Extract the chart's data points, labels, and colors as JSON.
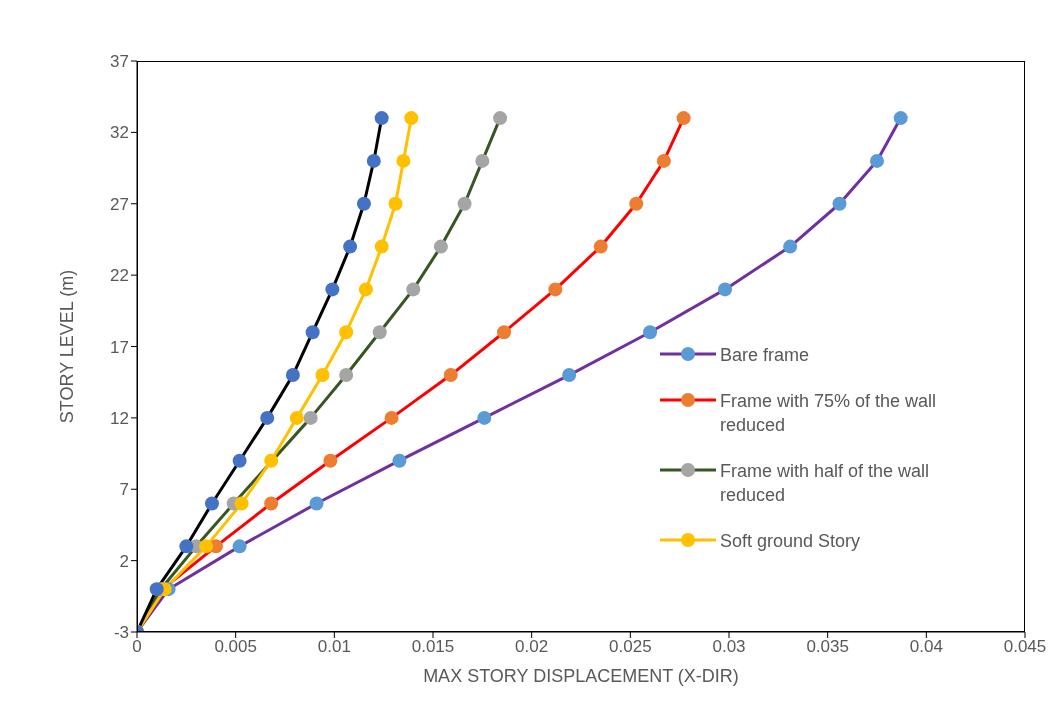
{
  "chart_data": {
    "type": "line",
    "xlabel": "MAX STORY DISPLACEMENT (X-DIR)",
    "ylabel": "STORY LEVEL (m)",
    "xlim": [
      0,
      0.045
    ],
    "xticks": [
      0,
      0.005,
      0.01,
      0.015,
      0.02,
      0.025,
      0.03,
      0.035,
      0.04,
      0.045
    ],
    "ylim": [
      -3,
      37
    ],
    "yticks": [
      -3,
      2,
      7,
      12,
      17,
      22,
      27,
      32,
      37
    ],
    "grid": false,
    "legend": "right",
    "marker": "circle",
    "line_style": "solid",
    "series": [
      {
        "name": "Bare frame",
        "color": "#7030a0",
        "colors": [
          "#5b9bd5",
          "#5b9bd5",
          "#5b9bd5",
          "#5b9bd5",
          "#5b9bd5",
          "#5b9bd5",
          "#5b9bd5",
          "#5b9bd5",
          "#5b9bd5",
          "#5b9bd5",
          "#5b9bd5",
          "#5b9bd5",
          "#5b9bd5"
        ],
        "x": [
          0,
          0.0016,
          0.0052,
          0.0091,
          0.0133,
          0.0176,
          0.0219,
          0.026,
          0.0298,
          0.0331,
          0.0356,
          0.0375,
          0.0387
        ],
        "values": [
          -3,
          0,
          3,
          6,
          9,
          12,
          15,
          18,
          21,
          24,
          27,
          30,
          33
        ]
      },
      {
        "name": "Frame with 75% of the wall reduced",
        "color": "#ff0000",
        "colors": [
          "#ed7d31",
          "#ed7d31",
          "#ed7d31",
          "#ed7d31",
          "#ed7d31",
          "#ed7d31",
          "#ed7d31",
          "#ed7d31",
          "#ed7d31",
          "#ed7d31",
          "#ed7d31",
          "#ed7d31",
          "#ed7d31"
        ],
        "x": [
          0,
          0.0013,
          0.004,
          0.0068,
          0.0098,
          0.0129,
          0.0159,
          0.0186,
          0.0212,
          0.0235,
          0.0253,
          0.0267,
          0.0277
        ],
        "values": [
          -3,
          0,
          3,
          6,
          9,
          12,
          15,
          18,
          21,
          24,
          27,
          30,
          33
        ]
      },
      {
        "name": "Frame with half of the wall reduced",
        "color": "#375623",
        "colors": [
          "#a5a5a5",
          "#a5a5a5",
          "#a5a5a5",
          "#a5a5a5",
          null,
          "#a5a5a5",
          "#a5a5a5",
          "#a5a5a5",
          "#a5a5a5",
          "#a5a5a5",
          "#a5a5a5",
          "#a5a5a5",
          "#a5a5a5"
        ],
        "x": [
          0,
          0.0012,
          0.003,
          0.0049,
          0.0068,
          0.0088,
          0.0106,
          0.0123,
          0.014,
          0.0154,
          0.0166,
          0.0175,
          0.0184
        ],
        "values": [
          -3,
          0,
          3,
          6,
          null,
          12,
          15,
          18,
          21,
          24,
          27,
          30,
          33
        ]
      },
      {
        "name": "Soft ground Story",
        "color": "#ffc000",
        "colors": [
          "#ffc000",
          "#ffc000",
          "#ffc000",
          "#ffc000",
          "#ffc000",
          "#ffc000",
          "#ffc000",
          "#ffc000",
          "#ffc000",
          "#ffc000",
          "#ffc000",
          "#ffc000",
          "#ffc000"
        ],
        "x": [
          0,
          0.0014,
          0.0035,
          0.0053,
          0.0068,
          0.0081,
          0.0094,
          0.0106,
          0.0116,
          0.0124,
          0.0131,
          0.0135,
          0.0139
        ],
        "values": [
          -3,
          0,
          3,
          6,
          9,
          12,
          15,
          18,
          21,
          24,
          27,
          30,
          33
        ]
      },
      {
        "color": "#000000",
        "colors": [
          "#4472c4",
          "#4472c4",
          "#4472c4",
          "#4472c4",
          "#4472c4",
          "#4472c4",
          "#4472c4",
          "#4472c4",
          "#4472c4",
          "#4472c4",
          "#4472c4",
          "#4472c4",
          "#4472c4"
        ],
        "x": [
          0,
          0.001,
          0.0025,
          0.0038,
          0.0052,
          0.0066,
          0.0079,
          0.0089,
          0.0099,
          0.0108,
          0.0115,
          0.012,
          0.0124
        ],
        "values": [
          -3,
          0,
          3,
          6,
          9,
          12,
          15,
          18,
          21,
          24,
          27,
          30,
          33
        ]
      }
    ]
  }
}
